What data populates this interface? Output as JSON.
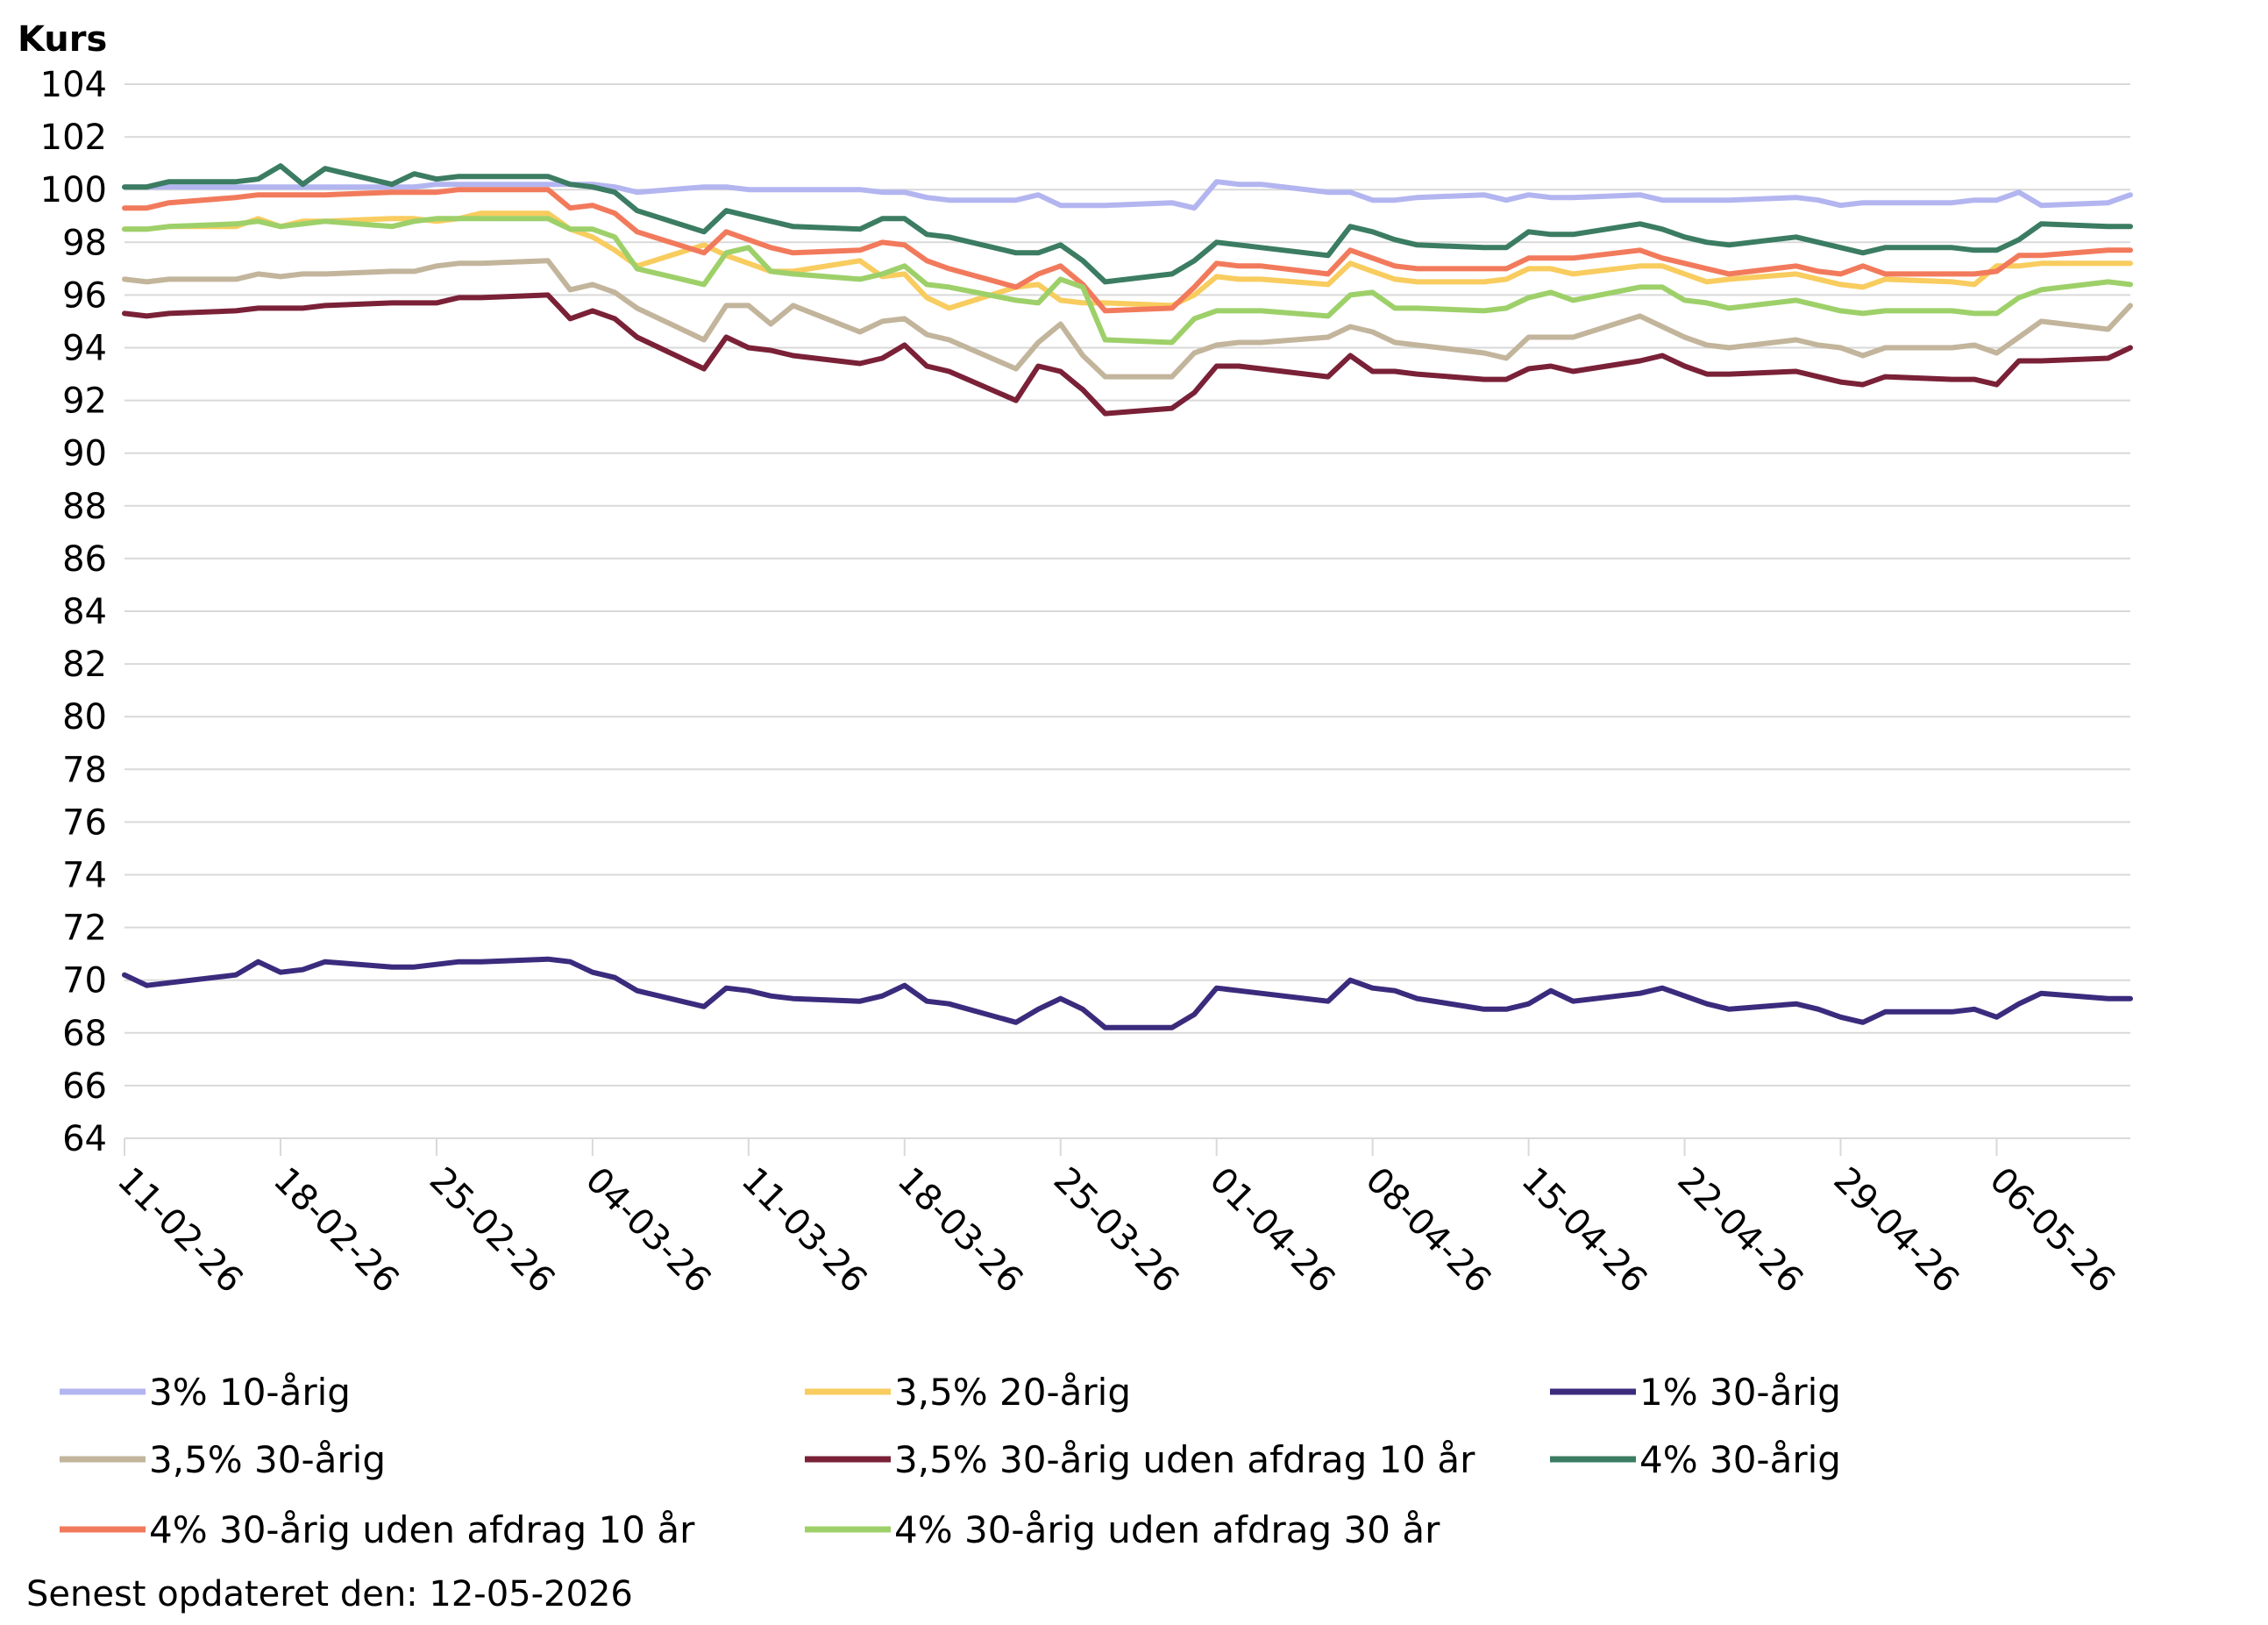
{
  "chart_data": {
    "type": "line",
    "ylabel": "Kurs",
    "ylim": [
      64,
      104
    ],
    "yticks": [
      64,
      66,
      68,
      70,
      72,
      74,
      76,
      78,
      80,
      82,
      84,
      86,
      88,
      90,
      92,
      94,
      96,
      98,
      100,
      102,
      104
    ],
    "xtick_labels": [
      "11-02-26",
      "18-02-26",
      "25-02-26",
      "04-03-26",
      "11-03-26",
      "18-03-26",
      "25-03-26",
      "01-04-26",
      "08-04-26",
      "15-04-26",
      "22-04-26",
      "29-04-26",
      "06-05-26"
    ],
    "grid": true,
    "legend_position": "bottom",
    "x": [
      0,
      1,
      2,
      5,
      6,
      7,
      8,
      9,
      12,
      13,
      14,
      15,
      16,
      19,
      20,
      21,
      22,
      23,
      26,
      27,
      28,
      29,
      30,
      33,
      34,
      35,
      36,
      37,
      40,
      41,
      42,
      43,
      44,
      47,
      48,
      49,
      50,
      51,
      54,
      55,
      56,
      57,
      58,
      61,
      62,
      63,
      64,
      65,
      68,
      69,
      70,
      71,
      72,
      75,
      76,
      77,
      78,
      79,
      82,
      83,
      84,
      85,
      86,
      89,
      90
    ],
    "series": [
      {
        "name": "3% 10-årig",
        "color": "#b3b5f0",
        "values": [
          100.1,
          100.1,
          100.1,
          100.1,
          100.1,
          100.1,
          100.1,
          100.1,
          100.1,
          100.1,
          100.2,
          100.2,
          100.2,
          100.2,
          100.2,
          100.2,
          100.1,
          99.9,
          100.1,
          100.1,
          100.0,
          100.0,
          100.0,
          100.0,
          99.9,
          99.9,
          99.7,
          99.6,
          99.6,
          99.8,
          99.4,
          99.4,
          99.4,
          99.5,
          99.3,
          100.3,
          100.2,
          100.2,
          99.9,
          99.9,
          99.6,
          99.6,
          99.7,
          99.8,
          99.6,
          99.8,
          99.7,
          99.7,
          99.8,
          99.6,
          99.6,
          99.6,
          99.6,
          99.7,
          99.6,
          99.4,
          99.5,
          99.5,
          99.5,
          99.6,
          99.6,
          99.9,
          99.4,
          99.5,
          99.8
        ]
      },
      {
        "name": "3,5% 20-årig",
        "color": "#f8cc5e",
        "values": [
          98.5,
          98.5,
          98.6,
          98.6,
          98.9,
          98.6,
          98.8,
          98.8,
          98.9,
          98.9,
          98.8,
          98.9,
          99.1,
          99.1,
          98.5,
          98.2,
          97.7,
          97.1,
          97.9,
          97.5,
          97.2,
          96.9,
          96.9,
          97.3,
          96.7,
          96.8,
          95.9,
          95.5,
          96.3,
          96.4,
          95.8,
          95.7,
          95.7,
          95.6,
          96.0,
          96.7,
          96.6,
          96.6,
          96.4,
          97.2,
          96.9,
          96.6,
          96.5,
          96.5,
          96.6,
          97.0,
          97.0,
          96.8,
          97.1,
          97.1,
          96.8,
          96.5,
          96.6,
          96.8,
          96.6,
          96.4,
          96.3,
          96.6,
          96.5,
          96.4,
          97.1,
          97.1,
          97.2,
          97.2,
          97.2
        ]
      },
      {
        "name": "1% 30-årig",
        "color": "#3b2b7d",
        "values": [
          70.2,
          69.8,
          69.9,
          70.2,
          70.7,
          70.3,
          70.4,
          70.7,
          70.5,
          70.5,
          70.6,
          70.7,
          70.7,
          70.8,
          70.7,
          70.3,
          70.1,
          69.6,
          69.0,
          69.7,
          69.6,
          69.4,
          69.3,
          69.2,
          69.4,
          69.8,
          69.2,
          69.1,
          68.4,
          68.9,
          69.3,
          68.9,
          68.2,
          68.2,
          68.7,
          69.7,
          69.6,
          69.5,
          69.2,
          70.0,
          69.7,
          69.6,
          69.3,
          68.9,
          68.9,
          69.1,
          69.6,
          69.2,
          69.5,
          69.7,
          69.4,
          69.1,
          68.9,
          69.1,
          68.9,
          68.6,
          68.4,
          68.8,
          68.8,
          68.9,
          68.6,
          69.1,
          69.5,
          69.3,
          69.3
        ]
      },
      {
        "name": "3,5% 30-årig",
        "color": "#c2b59c",
        "values": [
          96.6,
          96.5,
          96.6,
          96.6,
          96.8,
          96.7,
          96.8,
          96.8,
          96.9,
          96.9,
          97.1,
          97.2,
          97.2,
          97.3,
          96.2,
          96.4,
          96.1,
          95.5,
          94.3,
          95.6,
          95.6,
          94.9,
          95.6,
          94.6,
          95.0,
          95.1,
          94.5,
          94.3,
          93.2,
          94.2,
          94.9,
          93.7,
          92.9,
          92.9,
          93.8,
          94.1,
          94.2,
          94.2,
          94.4,
          94.8,
          94.6,
          94.2,
          94.1,
          93.8,
          93.6,
          94.4,
          94.4,
          94.4,
          95.2,
          94.8,
          94.4,
          94.1,
          94.0,
          94.3,
          94.1,
          94.0,
          93.7,
          94.0,
          94.0,
          94.1,
          93.8,
          94.4,
          95.0,
          94.7,
          95.6
        ]
      },
      {
        "name": "3,5% 30-årig uden afdrag 10 år",
        "color": "#7a2137",
        "values": [
          95.3,
          95.2,
          95.3,
          95.4,
          95.5,
          95.5,
          95.5,
          95.6,
          95.7,
          95.7,
          95.7,
          95.9,
          95.9,
          96.0,
          95.1,
          95.4,
          95.1,
          94.4,
          93.2,
          94.4,
          94.0,
          93.9,
          93.7,
          93.4,
          93.6,
          94.1,
          93.3,
          93.1,
          92.0,
          93.3,
          93.1,
          92.4,
          91.5,
          91.7,
          92.3,
          93.3,
          93.3,
          93.2,
          92.9,
          93.7,
          93.1,
          93.1,
          93.0,
          92.8,
          92.8,
          93.2,
          93.3,
          93.1,
          93.5,
          93.7,
          93.3,
          93.0,
          93.0,
          93.1,
          92.9,
          92.7,
          92.6,
          92.9,
          92.8,
          92.8,
          92.6,
          93.5,
          93.5,
          93.6,
          94.0
        ]
      },
      {
        "name": "4% 30-årig",
        "color": "#3b7c62",
        "values": [
          100.1,
          100.1,
          100.3,
          100.3,
          100.4,
          100.9,
          100.2,
          100.8,
          100.2,
          100.6,
          100.4,
          100.5,
          100.5,
          100.5,
          100.2,
          100.1,
          99.9,
          99.2,
          98.4,
          99.2,
          99.0,
          98.8,
          98.6,
          98.5,
          98.9,
          98.9,
          98.3,
          98.2,
          97.6,
          97.6,
          97.9,
          97.3,
          96.5,
          96.8,
          97.3,
          98.0,
          97.9,
          97.8,
          97.5,
          98.6,
          98.4,
          98.1,
          97.9,
          97.8,
          97.8,
          98.4,
          98.3,
          98.3,
          98.7,
          98.5,
          98.2,
          98.0,
          97.9,
          98.2,
          98.0,
          97.8,
          97.6,
          97.8,
          97.8,
          97.7,
          97.7,
          98.1,
          98.7,
          98.6,
          98.6
        ]
      },
      {
        "name": "4% 30-årig uden afdrag 10 år",
        "color": "#f27a5c",
        "values": [
          99.3,
          99.3,
          99.5,
          99.7,
          99.8,
          99.8,
          99.8,
          99.8,
          99.9,
          99.9,
          99.9,
          100.0,
          100.0,
          100.0,
          99.3,
          99.4,
          99.1,
          98.4,
          97.6,
          98.4,
          98.1,
          97.8,
          97.6,
          97.7,
          98.0,
          97.9,
          97.3,
          97.0,
          96.3,
          96.8,
          97.1,
          96.4,
          95.4,
          95.5,
          96.3,
          97.2,
          97.1,
          97.1,
          96.8,
          97.7,
          97.4,
          97.1,
          97.0,
          97.0,
          97.0,
          97.4,
          97.4,
          97.4,
          97.7,
          97.4,
          97.2,
          97.0,
          96.8,
          97.1,
          96.9,
          96.8,
          97.1,
          96.8,
          96.8,
          96.8,
          96.9,
          97.5,
          97.5,
          97.7,
          97.7
        ]
      },
      {
        "name": "4% 30-årig uden afdrag 30 år",
        "color": "#9ed06a",
        "values": [
          98.5,
          98.5,
          98.6,
          98.7,
          98.8,
          98.6,
          98.7,
          98.8,
          98.6,
          98.8,
          98.9,
          98.9,
          98.9,
          98.9,
          98.5,
          98.5,
          98.2,
          97.0,
          96.4,
          97.6,
          97.8,
          96.9,
          96.8,
          96.6,
          96.8,
          97.1,
          96.4,
          96.3,
          95.8,
          95.7,
          96.6,
          96.3,
          94.3,
          94.2,
          95.1,
          95.4,
          95.4,
          95.4,
          95.2,
          96.0,
          96.1,
          95.5,
          95.5,
          95.4,
          95.5,
          95.9,
          96.1,
          95.8,
          96.3,
          96.3,
          95.8,
          95.7,
          95.5,
          95.8,
          95.6,
          95.4,
          95.3,
          95.4,
          95.4,
          95.3,
          95.3,
          95.9,
          96.2,
          96.5,
          96.4
        ]
      }
    ]
  },
  "footer": {
    "updated_text": "Senest opdateret den: 12-05-2026"
  }
}
